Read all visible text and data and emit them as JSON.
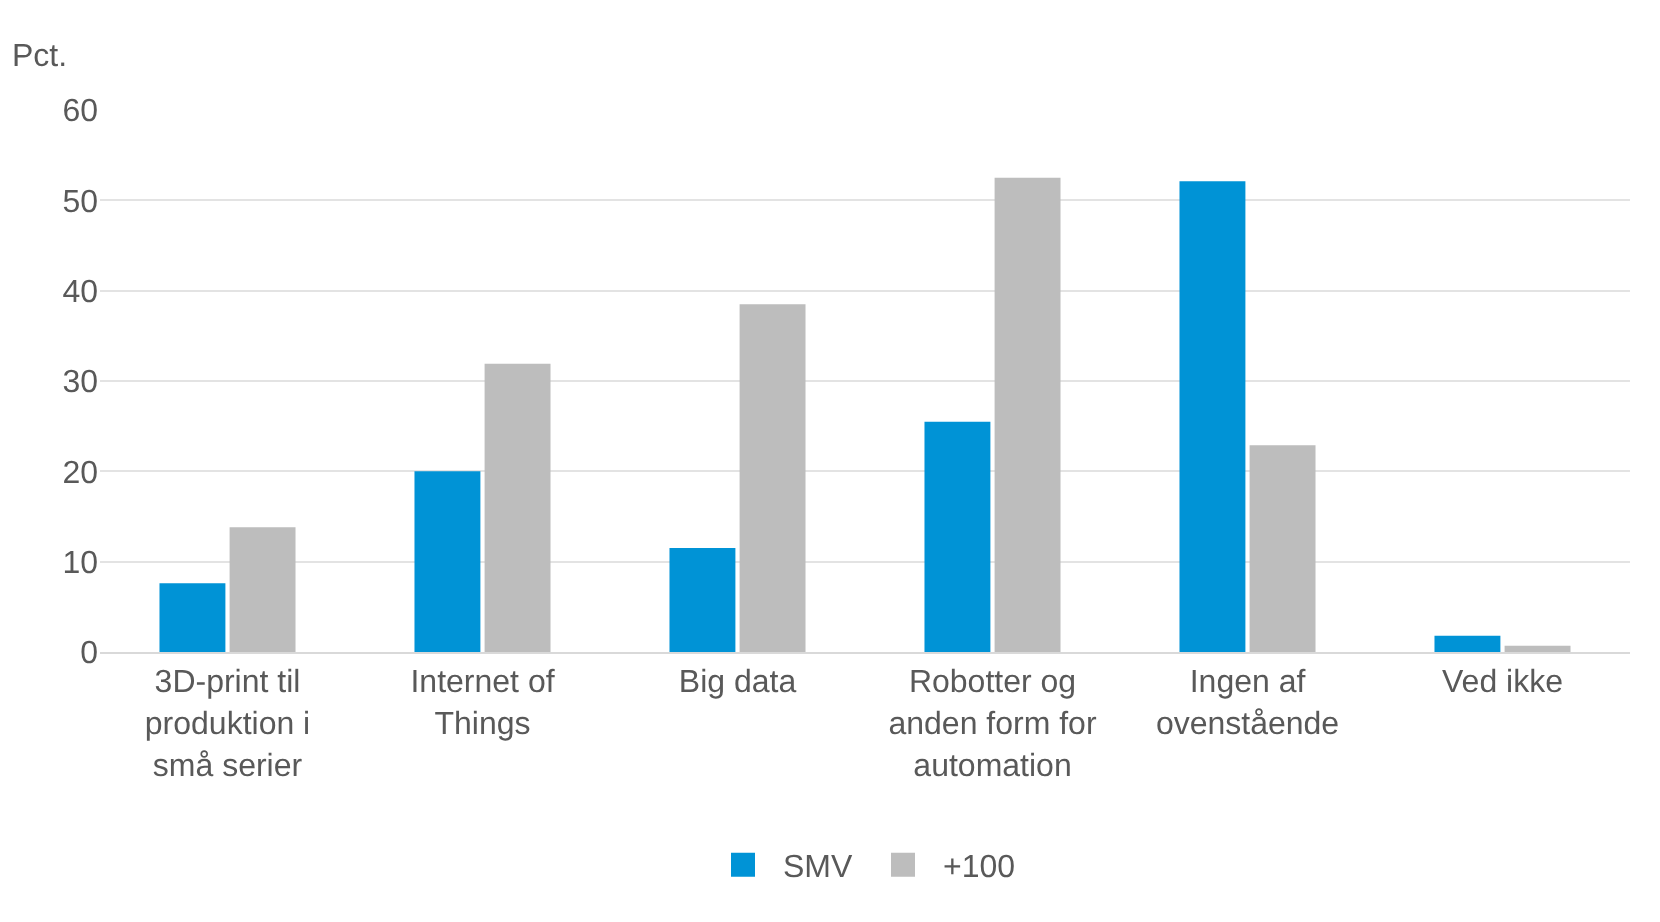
{
  "chart_data": {
    "type": "bar",
    "ylabel": "Pct.",
    "categories": [
      "3D-print til\nproduktion i\nsmå serier",
      "Internet of\nThings",
      "Big data",
      "Robotter og\nanden form for\nautomation",
      "Ingen af\novenstående",
      "Ved ikke"
    ],
    "series": [
      {
        "name": "SMV",
        "color": "#0093d6",
        "values": [
          7.6,
          20.0,
          11.5,
          25.5,
          52.1,
          1.8
        ]
      },
      {
        "name": "+100",
        "color": "#bdbdbd",
        "values": [
          13.8,
          31.9,
          38.5,
          52.5,
          22.9,
          0.7
        ]
      }
    ],
    "ylim": [
      0,
      60
    ],
    "yticks": [
      0,
      10,
      20,
      30,
      40,
      50,
      60
    ],
    "grid": "y",
    "legend": "bottom"
  }
}
